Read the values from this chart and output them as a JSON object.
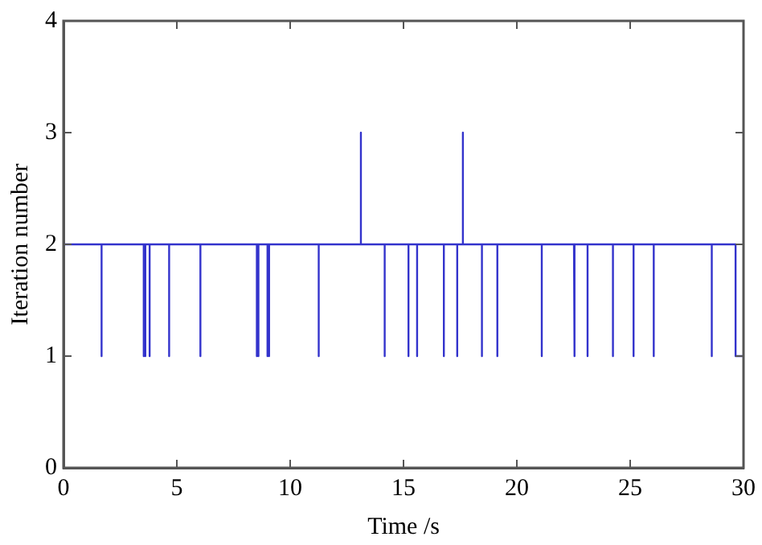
{
  "chart_data": {
    "type": "line",
    "xlabel": "Time /s",
    "ylabel": "Iteration number",
    "x": [
      0,
      1.68,
      1.68,
      1.68,
      3.54,
      3.54,
      3.54,
      3.61,
      3.61,
      3.61,
      3.8,
      3.8,
      3.8,
      4.66,
      4.66,
      4.66,
      6.04,
      6.04,
      6.04,
      8.53,
      8.53,
      8.53,
      8.6,
      8.6,
      8.6,
      9.0,
      9.0,
      9.0,
      9.07,
      9.07,
      9.07,
      11.26,
      11.26,
      11.26,
      13.12,
      13.12,
      13.12,
      14.17,
      14.17,
      14.17,
      15.22,
      15.22,
      15.22,
      15.6,
      15.6,
      15.6,
      16.78,
      16.78,
      16.78,
      17.37,
      17.37,
      17.37,
      17.62,
      17.62,
      17.62,
      18.46,
      18.46,
      18.46,
      19.14,
      19.14,
      19.14,
      21.1,
      21.1,
      21.1,
      22.52,
      22.52,
      22.52,
      22.56,
      22.56,
      22.56,
      23.12,
      23.12,
      23.12,
      24.24,
      24.24,
      24.24,
      25.15,
      25.15,
      25.15,
      26.04,
      26.04,
      26.04,
      28.6,
      28.6,
      28.6,
      29.65,
      29.65,
      30
    ],
    "series": [
      {
        "color": "#3333cc",
        "values": [
          2,
          2,
          1,
          2,
          2,
          1,
          2,
          2,
          1,
          2,
          2,
          1,
          2,
          2,
          1,
          2,
          2,
          1,
          2,
          2,
          1,
          2,
          2,
          1,
          2,
          2,
          1,
          2,
          2,
          1,
          2,
          2,
          1,
          2,
          2,
          3,
          2,
          2,
          1,
          2,
          2,
          1,
          2,
          2,
          1,
          2,
          2,
          1,
          2,
          2,
          1,
          2,
          2,
          3,
          2,
          2,
          1,
          2,
          2,
          1,
          2,
          2,
          1,
          2,
          2,
          1,
          2,
          2,
          1,
          2,
          2,
          1,
          2,
          2,
          1,
          2,
          2,
          1,
          2,
          2,
          1,
          2,
          2,
          1,
          2,
          2,
          1,
          1
        ]
      }
    ],
    "xlim": [
      0,
      30
    ],
    "xticks": [
      0,
      5,
      10,
      15,
      20,
      25,
      30
    ],
    "ylim": [
      0,
      4
    ],
    "yticks": [
      0,
      1,
      2,
      3,
      4
    ],
    "grid": false,
    "legend": false,
    "marker": "none",
    "line_style": "solid"
  }
}
